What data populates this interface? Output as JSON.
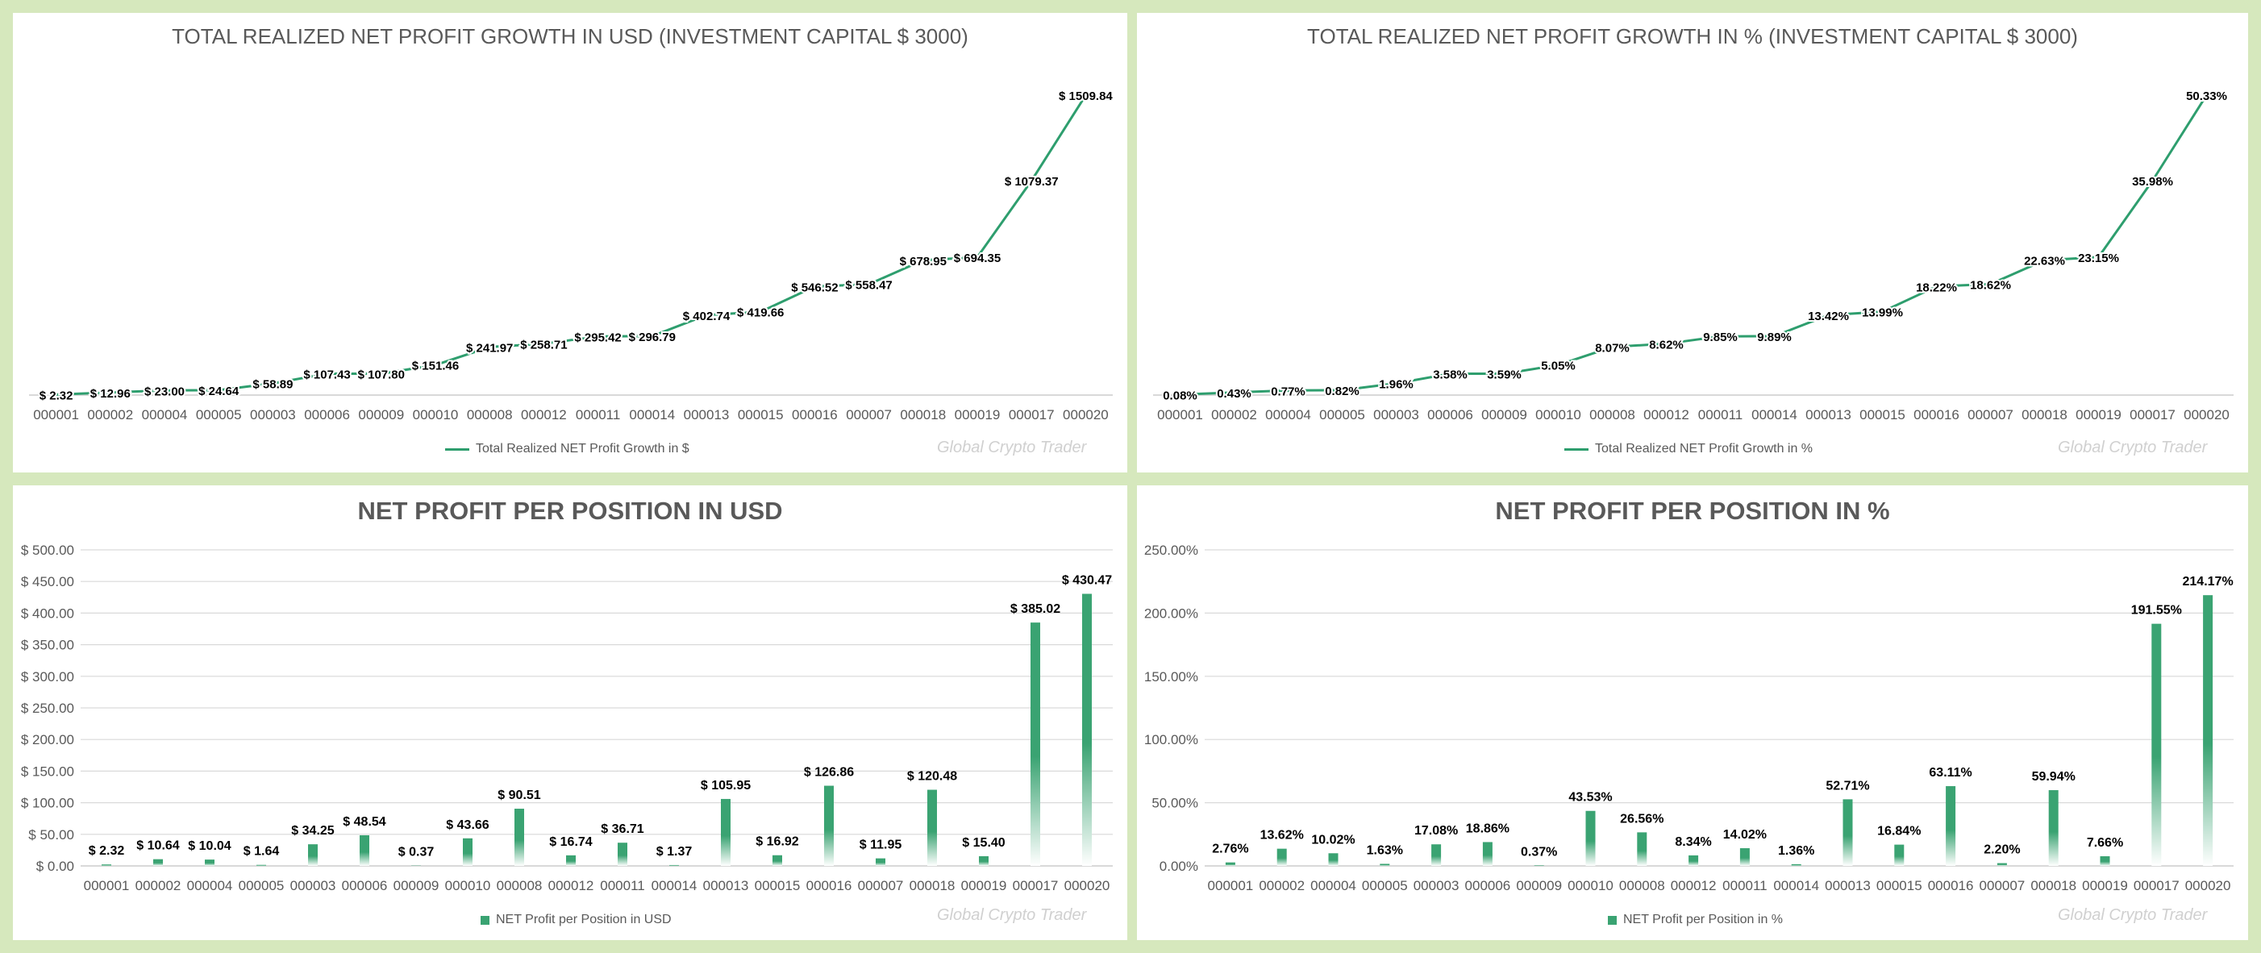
{
  "colors": {
    "line": "#2e9e6e",
    "bar": "#3aa372",
    "grid": "#d9d9d9",
    "text": "#595959",
    "label": "#000000",
    "background": "#d6e8bd"
  },
  "watermark": "Global Crypto Trader",
  "chart_data": [
    {
      "type": "line",
      "title": "TOTAL REALIZED NET PROFIT GROWTH IN USD (INVESTMENT CAPITAL $ 3000)",
      "categories": [
        "000001",
        "000002",
        "000004",
        "000005",
        "000003",
        "000006",
        "000009",
        "000010",
        "000008",
        "000012",
        "000011",
        "000014",
        "000013",
        "000015",
        "000016",
        "000007",
        "000018",
        "000019",
        "000017",
        "000020"
      ],
      "values": [
        2.32,
        12.96,
        23.0,
        24.64,
        58.89,
        107.43,
        107.8,
        151.46,
        241.97,
        258.71,
        295.42,
        296.79,
        402.74,
        419.66,
        546.52,
        558.47,
        678.95,
        694.35,
        1079.37,
        1509.84
      ],
      "labels": [
        "$ 2.32",
        "$ 12.96",
        "$ 23.00",
        "$ 24.64",
        "$ 58.89",
        "$ 107.43",
        "$ 107.80",
        "$ 151.46",
        "$ 241.97",
        "$ 258.71",
        "$ 295.42",
        "$ 296.79",
        "$ 402.74",
        "$ 419.66",
        "$ 546.52",
        "$ 558.47",
        "$ 678.95",
        "$ 694.35",
        "$ 1079.37",
        "$ 1509.84"
      ],
      "legend": "Total Realized NET Profit Growth in $",
      "ylim": [
        0,
        1600
      ]
    },
    {
      "type": "line",
      "title": "TOTAL REALIZED NET PROFIT GROWTH IN % (INVESTMENT CAPITAL $ 3000)",
      "categories": [
        "000001",
        "000002",
        "000004",
        "000005",
        "000003",
        "000006",
        "000009",
        "000010",
        "000008",
        "000012",
        "000011",
        "000014",
        "000013",
        "000015",
        "000016",
        "000007",
        "000018",
        "000019",
        "000017",
        "000020"
      ],
      "values": [
        0.08,
        0.43,
        0.77,
        0.82,
        1.96,
        3.58,
        3.59,
        5.05,
        8.07,
        8.62,
        9.85,
        9.89,
        13.42,
        13.99,
        18.22,
        18.62,
        22.63,
        23.15,
        35.98,
        50.33
      ],
      "labels": [
        "0.08%",
        "0.43%",
        "0.77%",
        "0.82%",
        "1.96%",
        "3.58%",
        "3.59%",
        "5.05%",
        "8.07%",
        "8.62%",
        "9.85%",
        "9.89%",
        "13.42%",
        "13.99%",
        "18.22%",
        "18.62%",
        "22.63%",
        "23.15%",
        "35.98%",
        "50.33%"
      ],
      "legend": "Total Realized NET Profit Growth in %",
      "ylim": [
        0,
        53.3
      ]
    },
    {
      "type": "bar",
      "title": "NET PROFIT PER POSITION IN USD",
      "categories": [
        "000001",
        "000002",
        "000004",
        "000005",
        "000003",
        "000006",
        "000009",
        "000010",
        "000008",
        "000012",
        "000011",
        "000014",
        "000013",
        "000015",
        "000016",
        "000007",
        "000018",
        "000019",
        "000017",
        "000020"
      ],
      "values": [
        2.32,
        10.64,
        10.04,
        1.64,
        34.25,
        48.54,
        0.37,
        43.66,
        90.51,
        16.74,
        36.71,
        1.37,
        105.95,
        16.92,
        126.86,
        11.95,
        120.48,
        15.4,
        385.02,
        430.47
      ],
      "labels": [
        "$ 2.32",
        "$ 10.64",
        "$ 10.04",
        "$ 1.64",
        "$ 34.25",
        "$ 48.54",
        "$ 0.37",
        "$ 43.66",
        "$ 90.51",
        "$ 16.74",
        "$ 36.71",
        "$ 1.37",
        "$ 105.95",
        "$ 16.92",
        "$ 126.86",
        "$ 11.95",
        "$ 120.48",
        "$ 15.40",
        "$ 385.02",
        "$ 430.47"
      ],
      "yticks": [
        "$ 0.00",
        "$ 50.00",
        "$ 100.00",
        "$ 150.00",
        "$ 200.00",
        "$ 250.00",
        "$ 300.00",
        "$ 350.00",
        "$ 400.00",
        "$ 450.00",
        "$ 500.00"
      ],
      "legend": "NET Profit per Position in USD",
      "ylim": [
        0,
        500
      ]
    },
    {
      "type": "bar",
      "title": "NET PROFIT PER POSITION IN %",
      "categories": [
        "000001",
        "000002",
        "000004",
        "000005",
        "000003",
        "000006",
        "000009",
        "000010",
        "000008",
        "000012",
        "000011",
        "000014",
        "000013",
        "000015",
        "000016",
        "000007",
        "000018",
        "000019",
        "000017",
        "000020"
      ],
      "values": [
        2.76,
        13.62,
        10.02,
        1.63,
        17.08,
        18.86,
        0.37,
        43.53,
        26.56,
        8.34,
        14.02,
        1.36,
        52.71,
        16.84,
        63.11,
        2.2,
        59.94,
        7.66,
        191.55,
        214.17
      ],
      "labels": [
        "2.76%",
        "13.62%",
        "10.02%",
        "1.63%",
        "17.08%",
        "18.86%",
        "0.37%",
        "43.53%",
        "26.56%",
        "8.34%",
        "14.02%",
        "1.36%",
        "52.71%",
        "16.84%",
        "63.11%",
        "2.20%",
        "59.94%",
        "7.66%",
        "191.55%",
        "214.17%"
      ],
      "yticks": [
        "0.00%",
        "50.00%",
        "100.00%",
        "150.00%",
        "200.00%",
        "250.00%"
      ],
      "legend": "NET Profit per Position in %",
      "ylim": [
        0,
        250
      ]
    }
  ]
}
